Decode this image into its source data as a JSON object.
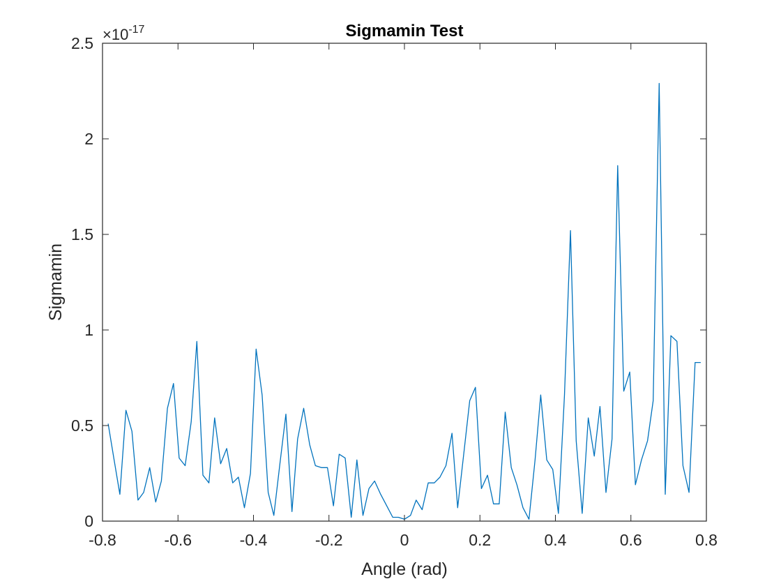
{
  "chart_data": {
    "type": "line",
    "title": "Sigmamin Test",
    "xlabel": "Angle (rad)",
    "ylabel": "Sigmamin",
    "y_exponent_label": "×10",
    "y_exponent_power": "-17",
    "xlim": [
      -0.8,
      0.8
    ],
    "ylim": [
      0,
      2.5
    ],
    "x_ticks": [
      -0.8,
      -0.6,
      -0.4,
      -0.2,
      0,
      0.2,
      0.4,
      0.6,
      0.8
    ],
    "x_tick_labels": [
      "-0.8",
      "-0.6",
      "-0.4",
      "-0.2",
      "0",
      "0.2",
      "0.4",
      "0.6",
      "0.8"
    ],
    "y_ticks": [
      0,
      0.5,
      1,
      1.5,
      2,
      2.5
    ],
    "y_tick_labels": [
      "0",
      "0.5",
      "1",
      "1.5",
      "2",
      "2.5"
    ],
    "grid": false,
    "line_color": "#0072BD",
    "series": [
      {
        "x": [
          -0.785,
          -0.77,
          -0.754,
          -0.738,
          -0.722,
          -0.706,
          -0.691,
          -0.675,
          -0.659,
          -0.644,
          -0.628,
          -0.612,
          -0.597,
          -0.581,
          -0.565,
          -0.55,
          -0.534,
          -0.518,
          -0.503,
          -0.487,
          -0.471,
          -0.455,
          -0.44,
          -0.424,
          -0.408,
          -0.393,
          -0.377,
          -0.361,
          -0.346,
          -0.33,
          -0.314,
          -0.298,
          -0.283,
          -0.267,
          -0.251,
          -0.236,
          -0.22,
          -0.204,
          -0.188,
          -0.173,
          -0.157,
          -0.141,
          -0.126,
          -0.11,
          -0.094,
          -0.079,
          -0.063,
          -0.047,
          -0.031,
          -0.016,
          0,
          0.016,
          0.031,
          0.047,
          0.063,
          0.079,
          0.094,
          0.11,
          0.126,
          0.141,
          0.157,
          0.173,
          0.188,
          0.204,
          0.22,
          0.236,
          0.251,
          0.267,
          0.283,
          0.298,
          0.314,
          0.33,
          0.346,
          0.361,
          0.377,
          0.393,
          0.408,
          0.424,
          0.44,
          0.455,
          0.471,
          0.487,
          0.503,
          0.518,
          0.534,
          0.55,
          0.565,
          0.581,
          0.597,
          0.612,
          0.628,
          0.644,
          0.659,
          0.675,
          0.691,
          0.706,
          0.722,
          0.738,
          0.754,
          0.77,
          0.785
        ],
        "values": [
          0.51,
          0.33,
          0.14,
          0.58,
          0.47,
          0.11,
          0.15,
          0.28,
          0.1,
          0.21,
          0.59,
          0.72,
          0.33,
          0.29,
          0.52,
          0.94,
          0.24,
          0.2,
          0.54,
          0.3,
          0.38,
          0.2,
          0.23,
          0.07,
          0.25,
          0.9,
          0.66,
          0.15,
          0.03,
          0.3,
          0.56,
          0.05,
          0.43,
          0.59,
          0.4,
          0.29,
          0.28,
          0.28,
          0.08,
          0.35,
          0.33,
          0.02,
          0.32,
          0.03,
          0.17,
          0.21,
          0.14,
          0.08,
          0.02,
          0.02,
          0.01,
          0.03,
          0.11,
          0.06,
          0.2,
          0.2,
          0.23,
          0.29,
          0.46,
          0.07,
          0.35,
          0.63,
          0.7,
          0.17,
          0.24,
          0.09,
          0.09,
          0.57,
          0.28,
          0.19,
          0.07,
          0.01,
          0.32,
          0.66,
          0.32,
          0.27,
          0.04,
          0.66,
          1.52,
          0.42,
          0.04,
          0.54,
          0.34,
          0.6,
          0.15,
          0.43,
          1.86,
          0.68,
          0.78,
          0.19,
          0.32,
          0.42,
          0.63,
          2.29,
          0.14,
          0.97,
          0.94,
          0.29,
          0.15,
          0.83,
          0.83
        ]
      }
    ]
  }
}
